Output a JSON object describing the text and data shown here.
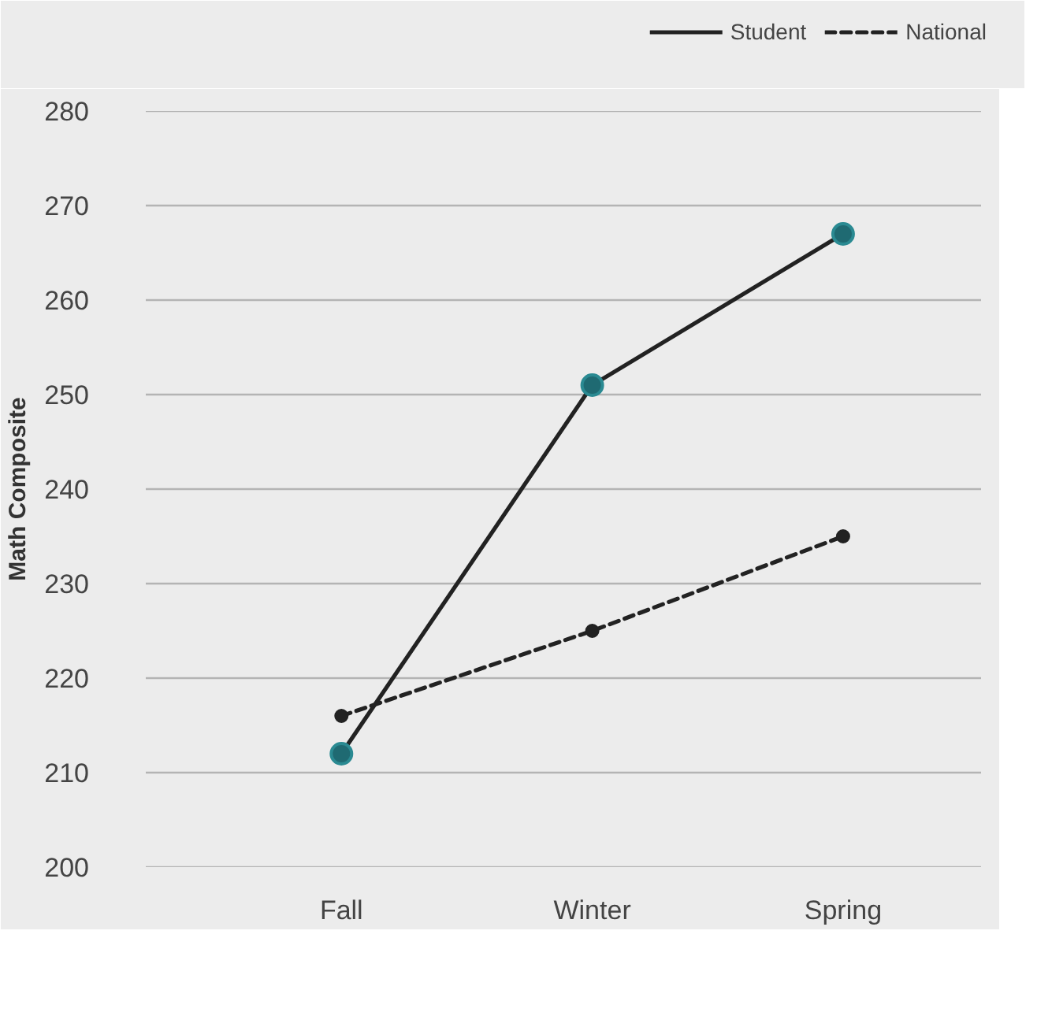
{
  "chart_data": {
    "type": "line",
    "ylabel": "Math Composite",
    "categories": [
      "Fall",
      "Winter",
      "Spring"
    ],
    "series": [
      {
        "name": "Student",
        "color": "#222222",
        "line_style": "solid",
        "values": [
          212,
          251,
          267
        ]
      },
      {
        "name": "National",
        "color": "#222222",
        "line_style": "dashed",
        "values": [
          216,
          225,
          235
        ]
      }
    ],
    "ylim": [
      200,
      280
    ],
    "yticks": [
      200,
      210,
      220,
      230,
      240,
      250,
      260,
      270,
      280
    ],
    "grid": "y",
    "legend": "top right",
    "marker": "circle"
  }
}
